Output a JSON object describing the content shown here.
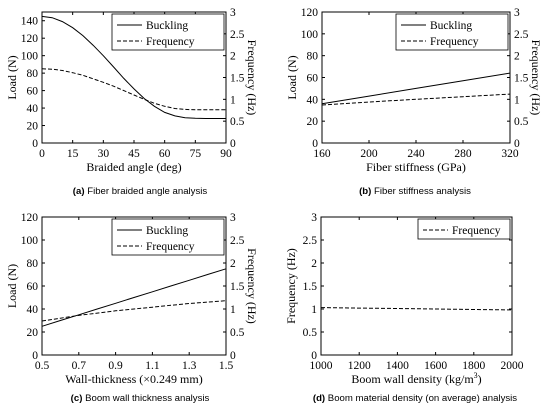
{
  "captions": [
    {
      "letter": "(a)",
      "text": "Fiber braided angle analysis"
    },
    {
      "letter": "(b)",
      "text": "Fiber stiffness analysis"
    },
    {
      "letter": "(c)",
      "text": "Boom wall thickness analysis"
    },
    {
      "letter": "(d)",
      "text": "Boom material density (on average) analysis"
    }
  ],
  "chart_data": [
    {
      "type": "line",
      "xlabel": "Braided angle (deg)",
      "ylabel_left": "Load (N)",
      "ylabel_right": "Frequency (Hz)",
      "xlim": [
        0,
        90
      ],
      "ylim_left": [
        0,
        150
      ],
      "ylim_right": [
        0,
        3
      ],
      "xticks": [
        "0",
        "15",
        "30",
        "45",
        "60",
        "75",
        "90"
      ],
      "yticks_left": [
        "0",
        "20",
        "40",
        "60",
        "80",
        "100",
        "120",
        "140"
      ],
      "yticks_right": [
        "0",
        "0.5",
        "1",
        "1.5",
        "2",
        "2.5",
        "3"
      ],
      "legend_position": "top-right",
      "series": [
        {
          "name": "Buckling",
          "axis": "left",
          "style": "solid",
          "x": [
            0,
            5,
            10,
            15,
            20,
            25,
            30,
            35,
            40,
            45,
            50,
            55,
            60,
            65,
            70,
            75,
            80,
            85,
            90
          ],
          "y": [
            145,
            143.5,
            139,
            132,
            123,
            112,
            100,
            87,
            74,
            62,
            51,
            42,
            35,
            31,
            29,
            28.3,
            28,
            28,
            28
          ]
        },
        {
          "name": "Frequency",
          "axis": "right",
          "style": "dashed",
          "x": [
            0,
            5,
            10,
            15,
            20,
            25,
            30,
            35,
            40,
            45,
            50,
            55,
            60,
            65,
            70,
            75,
            80,
            85,
            90
          ],
          "y": [
            1.7,
            1.69,
            1.66,
            1.61,
            1.55,
            1.47,
            1.39,
            1.3,
            1.2,
            1.1,
            1.0,
            0.91,
            0.84,
            0.79,
            0.77,
            0.76,
            0.76,
            0.76,
            0.76
          ]
        }
      ]
    },
    {
      "type": "line",
      "xlabel": "Fiber stiffness (GPa)",
      "ylabel_left": "Load (N)",
      "ylabel_right": "Frequency (Hz)",
      "xlim": [
        160,
        320
      ],
      "ylim_left": [
        0,
        120
      ],
      "ylim_right": [
        0,
        3
      ],
      "xticks": [
        "160",
        "200",
        "240",
        "280",
        "320"
      ],
      "yticks_left": [
        "0",
        "20",
        "40",
        "60",
        "80",
        "100",
        "120"
      ],
      "yticks_right": [
        "0",
        "0.5",
        "1",
        "1.5",
        "2",
        "2.5",
        "3"
      ],
      "legend_position": "top-right",
      "series": [
        {
          "name": "Buckling",
          "axis": "left",
          "style": "solid",
          "x": [
            160,
            200,
            240,
            280,
            320
          ],
          "y": [
            36,
            43,
            50,
            57,
            64
          ]
        },
        {
          "name": "Frequency",
          "axis": "right",
          "style": "dashed",
          "x": [
            160,
            200,
            240,
            280,
            320
          ],
          "y": [
            0.87,
            0.94,
            1.0,
            1.06,
            1.12
          ]
        }
      ]
    },
    {
      "type": "line",
      "xlabel": "Wall-thickness (×0.249 mm)",
      "ylabel_left": "Load (N)",
      "ylabel_right": "Frequency (Hz)",
      "xlim": [
        0.5,
        1.5
      ],
      "ylim_left": [
        0,
        120
      ],
      "ylim_right": [
        0,
        3
      ],
      "xticks": [
        "0.5",
        "0.7",
        "0.9",
        "1.1",
        "1.3",
        "1.5"
      ],
      "yticks_left": [
        "0",
        "20",
        "40",
        "60",
        "80",
        "100",
        "120"
      ],
      "yticks_right": [
        "0",
        "0.5",
        "1",
        "1.5",
        "2",
        "2.5",
        "3"
      ],
      "legend_position": "top-right",
      "series": [
        {
          "name": "Buckling",
          "axis": "left",
          "style": "solid",
          "x": [
            0.5,
            0.6,
            0.7,
            0.8,
            0.9,
            1.0,
            1.1,
            1.2,
            1.3,
            1.4,
            1.5
          ],
          "y": [
            25,
            30,
            35,
            40,
            45,
            50,
            55,
            60,
            65,
            70,
            75
          ]
        },
        {
          "name": "Frequency",
          "axis": "right",
          "style": "dashed",
          "x": [
            0.5,
            0.6,
            0.7,
            0.8,
            0.9,
            1.0,
            1.1,
            1.2,
            1.3,
            1.4,
            1.5
          ],
          "y": [
            0.74,
            0.8,
            0.86,
            0.91,
            0.96,
            1.0,
            1.04,
            1.08,
            1.12,
            1.15,
            1.18
          ]
        }
      ]
    },
    {
      "type": "line",
      "xlabel": "Boom wall density (kg/m³)",
      "ylabel_left": "Frequency (Hz)",
      "xlim": [
        1000,
        2000
      ],
      "ylim_left": [
        0,
        3
      ],
      "xticks": [
        "1000",
        "1200",
        "1400",
        "1600",
        "1800",
        "2000"
      ],
      "yticks_left": [
        "0",
        "0.5",
        "1",
        "1.5",
        "2",
        "2.5",
        "3"
      ],
      "legend_position": "top-right",
      "series": [
        {
          "name": "Frequency",
          "axis": "left",
          "style": "dashed",
          "x": [
            1000,
            1200,
            1400,
            1600,
            1800,
            2000
          ],
          "y": [
            1.03,
            1.02,
            1.01,
            1.0,
            0.99,
            0.98
          ]
        }
      ]
    }
  ]
}
